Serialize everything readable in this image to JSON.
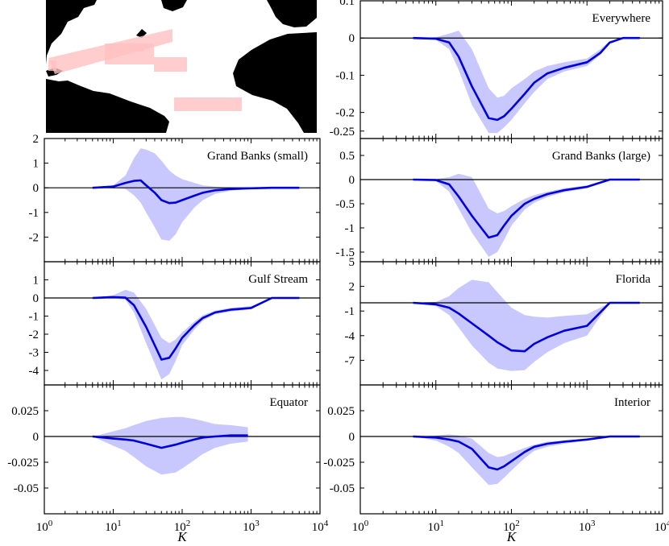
{
  "map": {
    "colors": {
      "ocean": "#ffffff",
      "land": "#000000",
      "region": "#ffc0c0"
    },
    "region_names": [
      "Everywhere",
      "Grand Banks (small)",
      "Grand Banks (large)",
      "Gulf Stream",
      "Florida",
      "Equator",
      "Interior"
    ]
  },
  "colors": {
    "line": "#0000dd",
    "band": "#c8c8ff",
    "zero": "#000000"
  },
  "xaxis": {
    "label": "K",
    "scale": "log",
    "range": [
      1,
      10000
    ],
    "tick_exponents": [
      "0",
      "1",
      "2",
      "3",
      "4"
    ]
  },
  "chart_data": [
    {
      "id": "everywhere",
      "type": "area",
      "title": "Everywhere",
      "ylim": [
        -0.27,
        0.1
      ],
      "yticks": [
        0.1,
        0,
        -0.1,
        -0.2,
        -0.25
      ],
      "yticklabels": [
        "0.1",
        "0",
        "-0.1",
        "-0.2",
        "-0.25"
      ],
      "x": [
        5,
        10,
        15,
        20,
        30,
        50,
        65,
        80,
        100,
        150,
        200,
        300,
        500,
        1000,
        1500,
        2000,
        3000,
        5000
      ],
      "mean": [
        0,
        -0.002,
        -0.012,
        -0.05,
        -0.13,
        -0.215,
        -0.22,
        -0.21,
        -0.19,
        -0.15,
        -0.12,
        -0.095,
        -0.08,
        -0.065,
        -0.04,
        -0.012,
        0,
        0
      ],
      "upper": [
        0,
        0.002,
        0.012,
        0.02,
        -0.03,
        -0.135,
        -0.16,
        -0.155,
        -0.135,
        -0.11,
        -0.09,
        -0.075,
        -0.065,
        -0.055,
        -0.03,
        -0.008,
        0,
        0
      ],
      "lower": [
        0,
        -0.005,
        -0.03,
        -0.085,
        -0.18,
        -0.255,
        -0.255,
        -0.24,
        -0.22,
        -0.175,
        -0.145,
        -0.11,
        -0.09,
        -0.075,
        -0.045,
        -0.015,
        0,
        0
      ]
    },
    {
      "id": "grand_banks_small",
      "type": "area",
      "title": "Grand Banks (small)",
      "ylim": [
        -3,
        2
      ],
      "yticks": [
        2,
        1,
        0,
        -1,
        -2
      ],
      "yticklabels": [
        "2",
        "1",
        "0",
        "-1",
        "-2"
      ],
      "x": [
        5,
        10,
        15,
        20,
        25,
        30,
        40,
        50,
        65,
        80,
        100,
        150,
        200,
        300,
        500,
        1000,
        2000,
        5000
      ],
      "mean": [
        0,
        0.05,
        0.2,
        0.28,
        0.3,
        0.1,
        -0.2,
        -0.5,
        -0.62,
        -0.6,
        -0.5,
        -0.32,
        -0.2,
        -0.1,
        -0.05,
        -0.02,
        0,
        0
      ],
      "upper": [
        0,
        0.1,
        0.5,
        1.2,
        1.6,
        1.55,
        1.4,
        1.1,
        0.7,
        0.5,
        0.35,
        0.2,
        0.1,
        0.05,
        0.02,
        0,
        0,
        0
      ],
      "lower": [
        0,
        0,
        -0.05,
        -0.3,
        -0.6,
        -1.0,
        -1.6,
        -2.1,
        -2.15,
        -1.9,
        -1.4,
        -0.8,
        -0.5,
        -0.25,
        -0.12,
        -0.04,
        0,
        0
      ]
    },
    {
      "id": "grand_banks_large",
      "type": "area",
      "title": "Grand Banks (large)",
      "ylim": [
        -1.7,
        0.85
      ],
      "yticks": [
        0.5,
        0,
        -0.5,
        -1,
        -1.5
      ],
      "yticklabels": [
        "0.5",
        "0",
        "-0.5",
        "-1",
        "-1.5"
      ],
      "x": [
        5,
        10,
        15,
        20,
        30,
        50,
        65,
        80,
        100,
        150,
        200,
        300,
        500,
        1000,
        2000,
        5000
      ],
      "mean": [
        0,
        -0.01,
        -0.1,
        -0.35,
        -0.75,
        -1.2,
        -1.15,
        -0.95,
        -0.75,
        -0.5,
        -0.4,
        -0.3,
        -0.22,
        -0.15,
        0,
        0
      ],
      "upper": [
        0,
        0.01,
        0.05,
        0.12,
        0.05,
        -0.6,
        -0.7,
        -0.65,
        -0.55,
        -0.4,
        -0.32,
        -0.25,
        -0.18,
        -0.12,
        0,
        0
      ],
      "lower": [
        0,
        -0.03,
        -0.25,
        -0.6,
        -1.1,
        -1.6,
        -1.5,
        -1.25,
        -0.95,
        -0.62,
        -0.48,
        -0.36,
        -0.26,
        -0.18,
        0,
        0
      ]
    },
    {
      "id": "gulf_stream",
      "type": "area",
      "title": "Gulf Stream",
      "ylim": [
        -4.8,
        2
      ],
      "yticks": [
        1,
        0,
        -1,
        -2,
        -3,
        -4
      ],
      "yticklabels": [
        "1",
        "0",
        "-1",
        "-2",
        "-3",
        "-4"
      ],
      "x": [
        5,
        10,
        15,
        20,
        30,
        50,
        65,
        80,
        100,
        150,
        200,
        300,
        500,
        1000,
        2000,
        5000
      ],
      "mean": [
        0,
        0.05,
        0.02,
        -0.4,
        -1.6,
        -3.4,
        -3.3,
        -2.8,
        -2.2,
        -1.5,
        -1.1,
        -0.8,
        -0.65,
        -0.55,
        0,
        0
      ],
      "upper": [
        0,
        0.15,
        0.45,
        0.3,
        -0.6,
        -2.2,
        -2.5,
        -2.3,
        -1.9,
        -1.3,
        -0.95,
        -0.7,
        -0.55,
        -0.45,
        0,
        0
      ],
      "lower": [
        0,
        0,
        -0.1,
        -0.8,
        -2.5,
        -4.5,
        -4.2,
        -3.5,
        -2.6,
        -1.75,
        -1.25,
        -0.9,
        -0.75,
        -0.62,
        0,
        0
      ]
    },
    {
      "id": "florida",
      "type": "area",
      "title": "Florida",
      "ylim": [
        -10,
        5
      ],
      "yticks": [
        5,
        2,
        -1,
        -4,
        -7
      ],
      "yticklabels": [
        "5",
        "2",
        "-1",
        "-4",
        "-7"
      ],
      "x": [
        5,
        10,
        15,
        20,
        30,
        50,
        65,
        100,
        150,
        200,
        300,
        500,
        1000,
        2000,
        5000
      ],
      "mean": [
        0,
        -0.2,
        -0.6,
        -1.3,
        -2.5,
        -4.0,
        -4.8,
        -5.8,
        -5.9,
        -5.0,
        -4.2,
        -3.4,
        -2.8,
        0,
        0
      ],
      "upper": [
        0,
        0.1,
        0.8,
        1.8,
        2.8,
        2.5,
        1.3,
        -0.6,
        -1.5,
        -1.7,
        -1.8,
        -1.6,
        -1.4,
        0,
        0
      ],
      "lower": [
        0,
        -0.4,
        -1.5,
        -3.0,
        -5.2,
        -7.3,
        -8.0,
        -8.3,
        -8.2,
        -7.2,
        -6.0,
        -4.9,
        -4.0,
        0,
        0
      ]
    },
    {
      "id": "equator",
      "type": "area",
      "title": "Equator",
      "ylim": [
        -0.075,
        0.05
      ],
      "yticks": [
        0.025,
        0,
        -0.025,
        -0.05
      ],
      "yticklabels": [
        "0.025",
        "0",
        "-0.025",
        "-0.05"
      ],
      "x": [
        5,
        10,
        15,
        20,
        30,
        50,
        80,
        100,
        150,
        200,
        300,
        500,
        900
      ],
      "mean": [
        0,
        -0.002,
        -0.003,
        -0.004,
        -0.007,
        -0.011,
        -0.008,
        -0.006,
        -0.003,
        -0.001,
        0,
        0.001,
        0.001
      ],
      "upper": [
        0,
        0.005,
        0.008,
        0.011,
        0.015,
        0.018,
        0.019,
        0.019,
        0.017,
        0.015,
        0.012,
        0.011,
        0.009
      ],
      "lower": [
        0,
        -0.009,
        -0.014,
        -0.02,
        -0.029,
        -0.037,
        -0.035,
        -0.031,
        -0.023,
        -0.017,
        -0.011,
        -0.007,
        -0.005
      ]
    },
    {
      "id": "interior",
      "type": "area",
      "title": "Interior",
      "ylim": [
        -0.075,
        0.05
      ],
      "yticks": [
        0.025,
        0,
        -0.025,
        -0.05
      ],
      "yticklabels": [
        "0.025",
        "0",
        "-0.025",
        "-0.05"
      ],
      "x": [
        5,
        10,
        15,
        20,
        30,
        50,
        65,
        80,
        100,
        150,
        200,
        300,
        500,
        1000,
        2000,
        5000
      ],
      "mean": [
        0,
        -0.001,
        -0.003,
        -0.005,
        -0.012,
        -0.03,
        -0.032,
        -0.029,
        -0.024,
        -0.015,
        -0.01,
        -0.007,
        -0.005,
        -0.003,
        0,
        0
      ],
      "upper": [
        0,
        0.001,
        0.002,
        0.001,
        -0.002,
        -0.016,
        -0.02,
        -0.019,
        -0.016,
        -0.011,
        -0.008,
        -0.005,
        -0.004,
        -0.002,
        0,
        0
      ],
      "lower": [
        0,
        -0.004,
        -0.01,
        -0.016,
        -0.03,
        -0.047,
        -0.046,
        -0.04,
        -0.033,
        -0.021,
        -0.014,
        -0.01,
        -0.007,
        -0.004,
        0,
        0
      ]
    }
  ]
}
